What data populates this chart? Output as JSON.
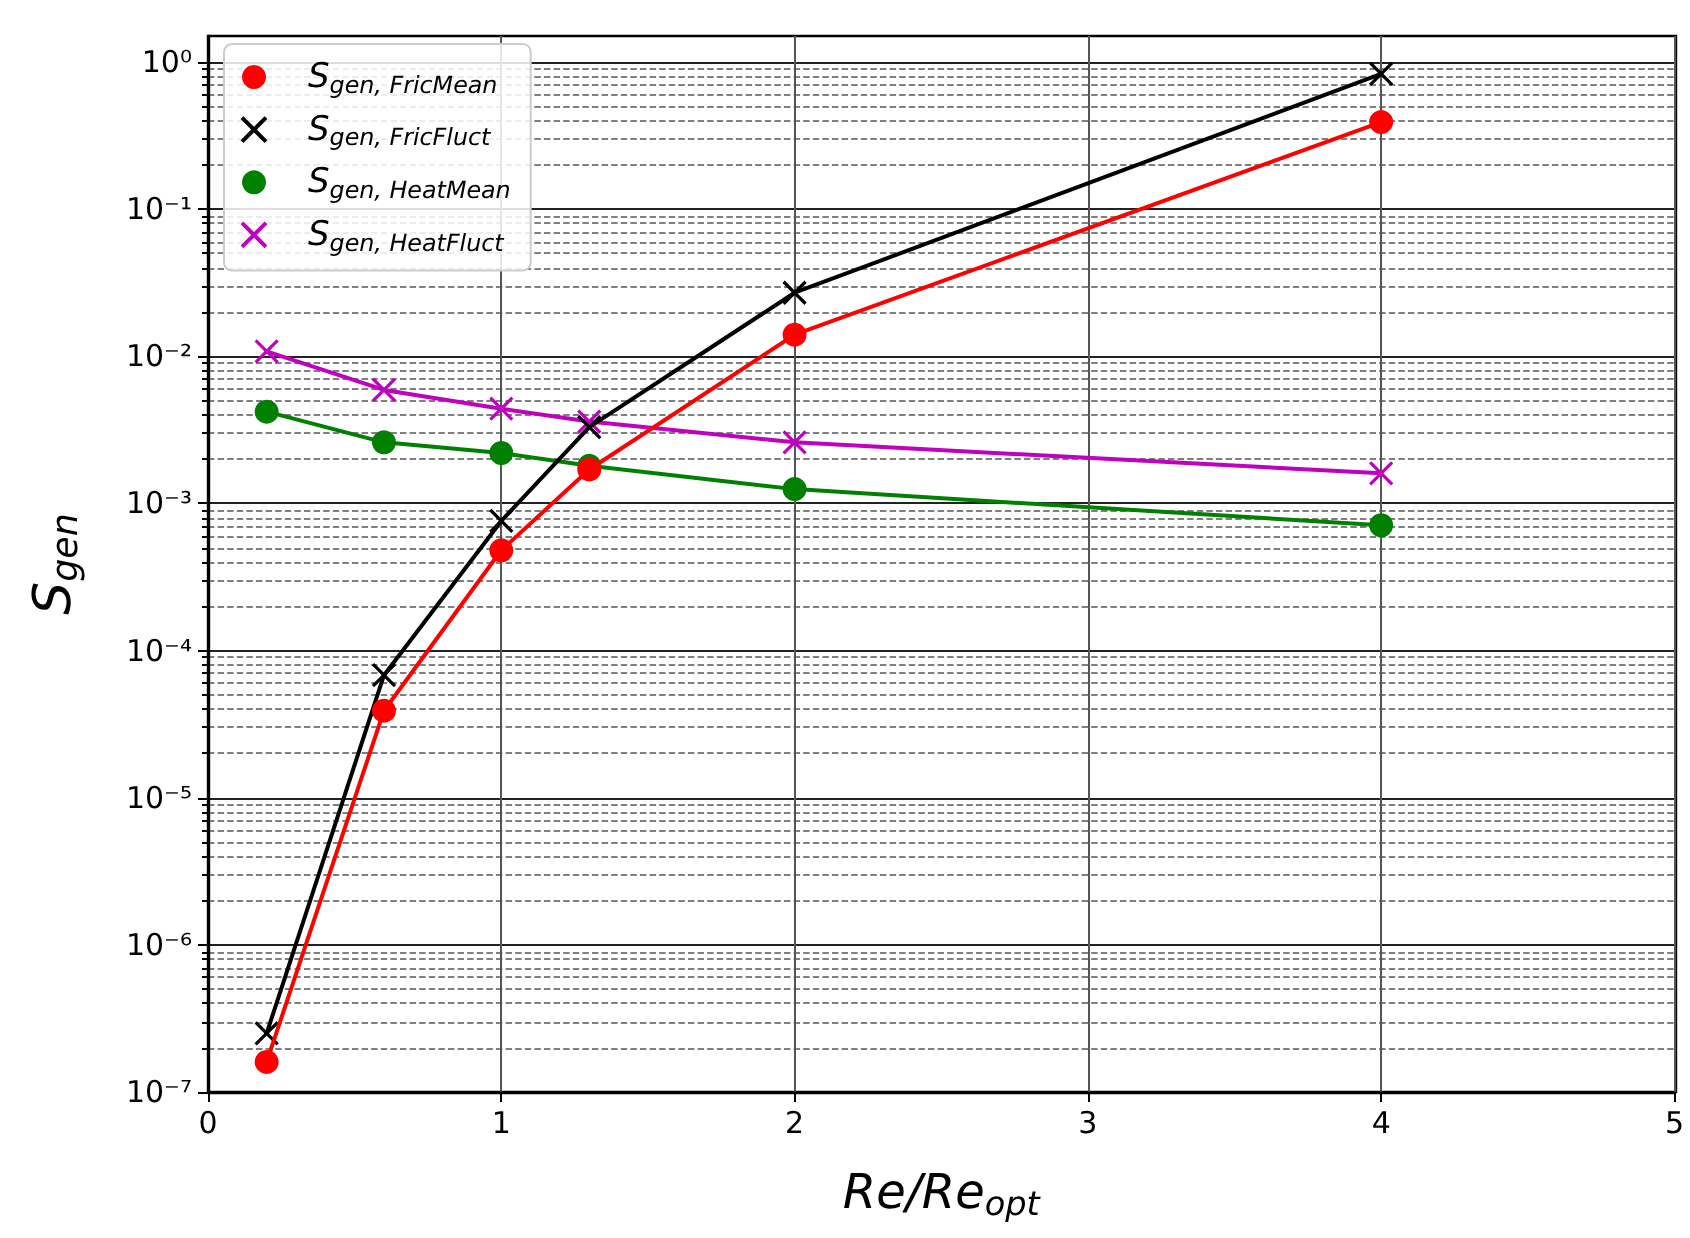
{
  "chart_data": {
    "type": "line",
    "xlabel": "Re/Re$_{opt}$",
    "ylabel": "S$_{gen}$",
    "x": [
      0.2,
      0.6,
      1,
      1.3,
      2,
      4
    ],
    "series": [
      {
        "name": "S$_{gen, FricMean}$",
        "color": "#ff0000",
        "marker": "circle",
        "values": [
          1.6e-07,
          3.9e-05,
          0.00048,
          0.0017,
          0.014,
          0.39
        ]
      },
      {
        "name": "S$_{gen, FricFluct}$",
        "color": "#000000",
        "marker": "cross",
        "values": [
          2.5e-07,
          6.8e-05,
          0.00076,
          0.0033,
          0.027,
          0.83
        ]
      },
      {
        "name": "S$_{gen, HeatMean}$",
        "color": "#008000",
        "marker": "circle",
        "values": [
          0.0042,
          0.0026,
          0.0022,
          0.0018,
          0.00125,
          0.00071
        ]
      },
      {
        "name": "S$_{gen, HeatFluct}$",
        "color": "#bf00bf",
        "marker": "cross",
        "values": [
          0.0108,
          0.0059,
          0.0044,
          0.0036,
          0.0026,
          0.0016
        ]
      }
    ],
    "log": "y",
    "xlim": [
      0,
      5
    ],
    "xticks": [
      0,
      1,
      2,
      3,
      4,
      5
    ],
    "ylim": [
      1e-07,
      1.5
    ],
    "yticks": [
      {
        "value": 1e-07,
        "label": "10⁻⁷"
      },
      {
        "value": 1e-06,
        "label": "10⁻⁶"
      },
      {
        "value": 1e-05,
        "label": "10⁻⁵"
      },
      {
        "value": 0.0001,
        "label": "10⁻⁴"
      },
      {
        "value": 0.001,
        "label": "10⁻³"
      },
      {
        "value": 0.01,
        "label": "10⁻²"
      },
      {
        "value": 0.1,
        "label": "10⁻¹"
      },
      {
        "value": 1,
        "label": "10⁰"
      }
    ],
    "grid": true,
    "legend": "top left",
    "line_style": "solid"
  }
}
